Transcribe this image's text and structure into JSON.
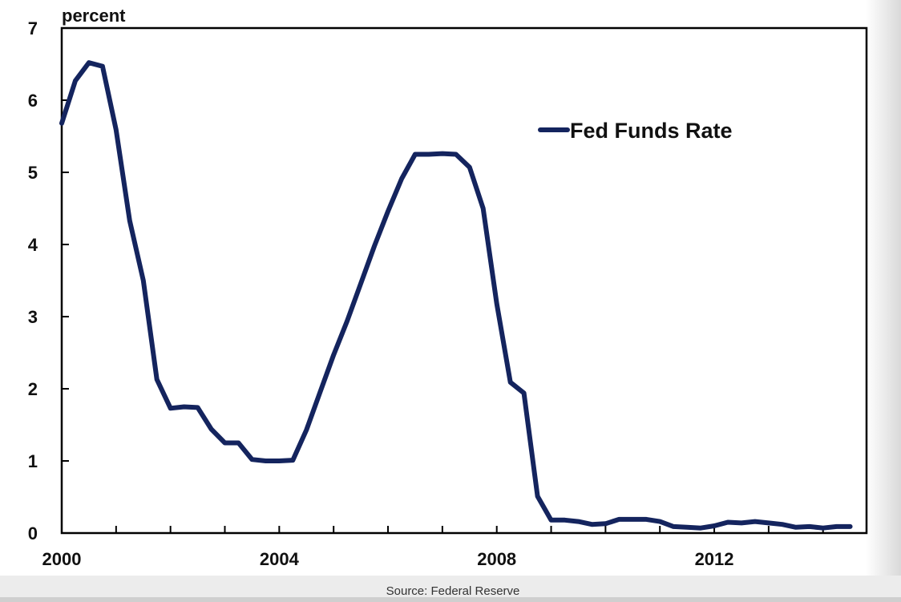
{
  "chart_data": {
    "type": "line",
    "title": "",
    "xlabel": "",
    "ylabel": "percent",
    "ylim": [
      0,
      7
    ],
    "xlim": [
      2000,
      2014.8
    ],
    "y_ticks": [
      "0",
      "1",
      "2",
      "3",
      "4",
      "5",
      "6",
      "7"
    ],
    "x_ticks": [
      "2000",
      "2004",
      "2008",
      "2012"
    ],
    "grid": false,
    "legend_position": "top-right",
    "source": "Source: Federal Reserve",
    "series": [
      {
        "name": "Fed Funds Rate",
        "color": "#14245e",
        "x": [
          2000.0,
          2000.25,
          2000.5,
          2000.75,
          2001.0,
          2001.25,
          2001.5,
          2001.75,
          2002.0,
          2002.25,
          2002.5,
          2002.75,
          2003.0,
          2003.25,
          2003.5,
          2003.75,
          2004.0,
          2004.25,
          2004.5,
          2004.75,
          2005.0,
          2005.25,
          2005.5,
          2005.75,
          2006.0,
          2006.25,
          2006.5,
          2006.75,
          2007.0,
          2007.25,
          2007.5,
          2007.75,
          2008.0,
          2008.25,
          2008.5,
          2008.75,
          2009.0,
          2009.25,
          2009.5,
          2009.75,
          2010.0,
          2010.25,
          2010.5,
          2010.75,
          2011.0,
          2011.25,
          2011.5,
          2011.75,
          2012.0,
          2012.25,
          2012.5,
          2012.75,
          2013.0,
          2013.25,
          2013.5,
          2013.75,
          2014.0,
          2014.25,
          2014.5
        ],
        "values": [
          5.68,
          6.27,
          6.52,
          6.47,
          5.59,
          4.33,
          3.5,
          2.13,
          1.73,
          1.75,
          1.74,
          1.44,
          1.25,
          1.25,
          1.02,
          1.0,
          1.0,
          1.01,
          1.43,
          1.95,
          2.47,
          2.94,
          3.46,
          3.98,
          4.46,
          4.91,
          5.25,
          5.25,
          5.26,
          5.25,
          5.07,
          4.5,
          3.18,
          2.09,
          1.94,
          0.51,
          0.18,
          0.18,
          0.16,
          0.12,
          0.13,
          0.19,
          0.19,
          0.19,
          0.16,
          0.09,
          0.08,
          0.07,
          0.1,
          0.15,
          0.14,
          0.16,
          0.14,
          0.12,
          0.08,
          0.09,
          0.07,
          0.09,
          0.09
        ]
      }
    ]
  }
}
